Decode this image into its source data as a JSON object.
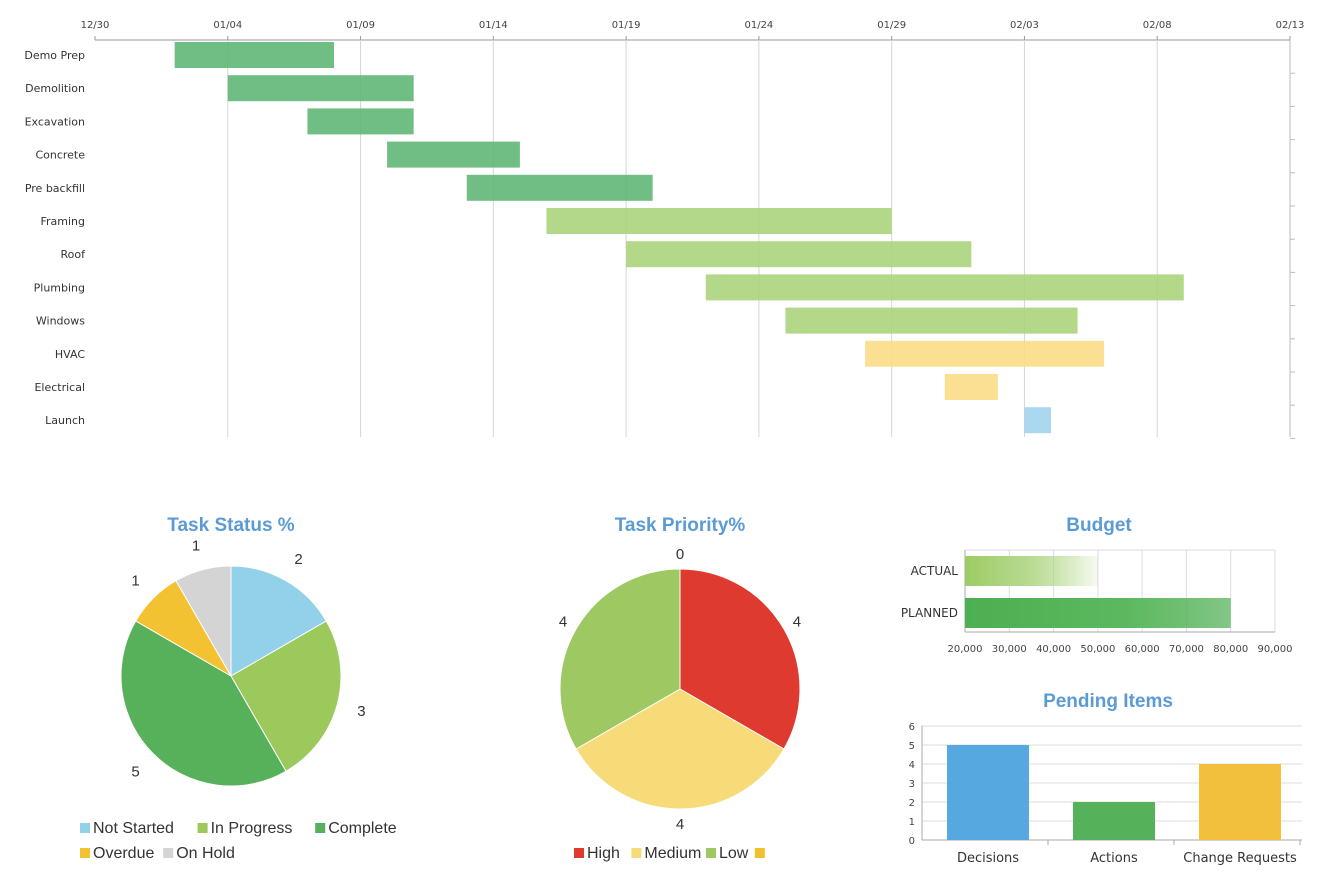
{
  "chart_data": [
    {
      "type": "gantt",
      "title": "",
      "x_start": "2023-12-30",
      "x_ticks": [
        "12/30",
        "01/04",
        "01/09",
        "01/14",
        "01/19",
        "01/24",
        "01/29",
        "02/03",
        "02/08",
        "02/13"
      ],
      "tasks": [
        {
          "name": "Demo Prep",
          "start_day": 3,
          "duration": 6,
          "status": "Complete"
        },
        {
          "name": "Demolition",
          "start_day": 5,
          "duration": 7,
          "status": "Complete"
        },
        {
          "name": "Excavation",
          "start_day": 8,
          "duration": 4,
          "status": "Complete"
        },
        {
          "name": "Concrete",
          "start_day": 11,
          "duration": 5,
          "status": "Complete"
        },
        {
          "name": "Pre backfill",
          "start_day": 14,
          "duration": 7,
          "status": "Complete"
        },
        {
          "name": "Framing",
          "start_day": 17,
          "duration": 13,
          "status": "In Progress"
        },
        {
          "name": "Roof",
          "start_day": 20,
          "duration": 13,
          "status": "In Progress"
        },
        {
          "name": "Plumbing",
          "start_day": 23,
          "duration": 18,
          "status": "In Progress"
        },
        {
          "name": "Windows",
          "start_day": 26,
          "duration": 11,
          "status": "In Progress"
        },
        {
          "name": "HVAC",
          "start_day": 29,
          "duration": 9,
          "status": "Overdue"
        },
        {
          "name": "Electrical",
          "start_day": 32,
          "duration": 2,
          "status": "Overdue"
        },
        {
          "name": "Launch",
          "start_day": 35,
          "duration": 1,
          "status": "Not Started"
        }
      ],
      "colors": {
        "Complete": "#5cb572",
        "In Progress": "#aad37a",
        "Overdue": "#fbdc85",
        "Not Started": "#9ed3ec"
      }
    },
    {
      "type": "pie",
      "title": "Task Status %",
      "slices": [
        {
          "name": "Not Started",
          "value": 2,
          "color": "#93d0ea"
        },
        {
          "name": "In Progress",
          "value": 3,
          "color": "#9cc95c"
        },
        {
          "name": "Complete",
          "value": 5,
          "color": "#57b05a"
        },
        {
          "name": "Overdue",
          "value": 1,
          "color": "#f3c232"
        },
        {
          "name": "On Hold",
          "value": 1,
          "color": "#d4d4d4"
        }
      ]
    },
    {
      "type": "pie",
      "title": "Task Priority%",
      "slices": [
        {
          "name": "",
          "value": 0,
          "color": "#f0c030"
        },
        {
          "name": "High",
          "value": 4,
          "color": "#de3a2f"
        },
        {
          "name": "Medium",
          "value": 4,
          "color": "#f7db79"
        },
        {
          "name": "Low",
          "value": 4,
          "color": "#9ec862"
        }
      ],
      "legend_order": [
        "High",
        "Medium",
        "Low",
        ""
      ]
    },
    {
      "type": "bar",
      "orientation": "horizontal",
      "title": "Budget",
      "categories": [
        "ACTUAL",
        "PLANNED"
      ],
      "values": [
        50000,
        80000
      ],
      "xlim": [
        20000,
        90000
      ],
      "x_ticks": [
        "20,000",
        "30,000",
        "40,000",
        "50,000",
        "60,000",
        "70,000",
        "80,000",
        "90,000"
      ],
      "colors": [
        "#9ccc65",
        "#4caf50"
      ]
    },
    {
      "type": "bar",
      "title": "Pending Items",
      "categories": [
        "Decisions",
        "Actions",
        "Change Requests"
      ],
      "values": [
        5,
        2,
        4
      ],
      "ylim": [
        0,
        6
      ],
      "y_ticks": [
        "0",
        "1",
        "2",
        "3",
        "4",
        "5",
        "6"
      ],
      "colors": [
        "#55a8e0",
        "#56b15b",
        "#f2c03d"
      ]
    }
  ]
}
